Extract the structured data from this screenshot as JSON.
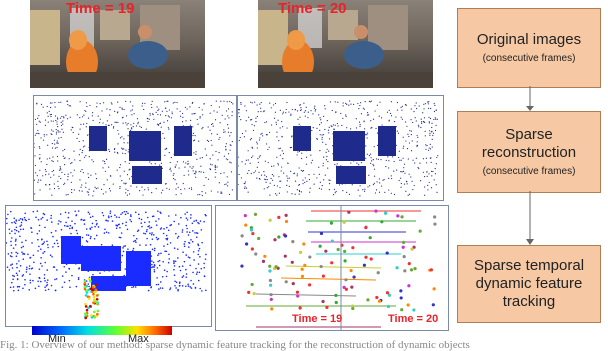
{
  "frames": {
    "frame1_label": "Time = 19",
    "frame2_label": "Time = 20"
  },
  "pipeline": {
    "step1": {
      "title": "Original images",
      "subtitle": "(consecutive frames)"
    },
    "step2": {
      "title": "Sparse reconstruction",
      "subtitle": "(consecutive frames)"
    },
    "step3": {
      "title": "Sparse temporal dynamic feature tracking"
    }
  },
  "colorbar": {
    "min_label": "Min",
    "max_label": "Max"
  },
  "tracking": {
    "left_label": "Time = 19",
    "right_label": "Time = 20"
  },
  "colors": {
    "box_fill": "#f6c9a4",
    "box_border": "#b07d55",
    "label_red": "#e8232a",
    "point_blue": "#1f2b8c",
    "heat_blue": "#1a2bff"
  },
  "caption": "Fig. 1: Overview of our method: sparse dynamic feature tracking for the reconstruction of dynamic objects"
}
